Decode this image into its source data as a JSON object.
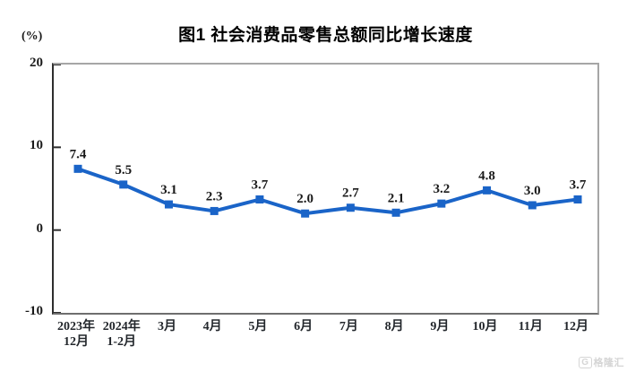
{
  "figure": {
    "unit_label": "(%)",
    "watermark_logo": "G",
    "watermark_text": "格隆汇"
  },
  "chart_data": {
    "type": "line",
    "title": "图1 社会消费品零售总额同比增长速度",
    "categories": [
      "2023年\n12月",
      "2024年\n1-2月",
      "3月",
      "4月",
      "5月",
      "6月",
      "7月",
      "8月",
      "9月",
      "10月",
      "11月",
      "12月"
    ],
    "values": [
      7.4,
      5.5,
      3.1,
      2.3,
      3.7,
      2.0,
      2.7,
      2.1,
      3.2,
      4.8,
      3.0,
      3.7
    ],
    "value_label_format": "one_decimal",
    "xlabel": "",
    "ylabel": "(%)",
    "ylim": [
      -10,
      20
    ],
    "yticks": [
      20,
      10,
      0,
      -10
    ],
    "grid": false,
    "legend": "none",
    "line_color": "#1a64c8",
    "marker": "square",
    "label_color": "#1a1a1a"
  }
}
